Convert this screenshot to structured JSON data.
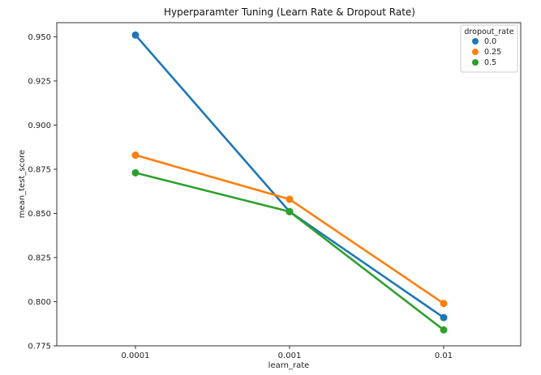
{
  "chart_data": {
    "type": "line",
    "title": "Hyperparamter Tuning (Learn Rate & Dropout Rate)",
    "xlabel": "learn_rate",
    "ylabel": "mean_test_score",
    "categories": [
      "0.0001",
      "0.001",
      "0.01"
    ],
    "ylim": [
      0.775,
      0.958
    ],
    "yticks": [
      0.775,
      0.8,
      0.825,
      0.85,
      0.875,
      0.9,
      0.925,
      0.95
    ],
    "ytick_labels": [
      "0.775",
      "0.800",
      "0.825",
      "0.850",
      "0.875",
      "0.900",
      "0.925",
      "0.950"
    ],
    "grid": false,
    "legend_title": "dropout_rate",
    "legend_position": "top-right",
    "series": [
      {
        "name": "0.0",
        "color": "#1f77b4",
        "values": [
          0.951,
          0.851,
          0.791
        ]
      },
      {
        "name": "0.25",
        "color": "#ff7f0e",
        "values": [
          0.883,
          0.858,
          0.799
        ]
      },
      {
        "name": "0.5",
        "color": "#2ca02c",
        "values": [
          0.873,
          0.851,
          0.784
        ]
      }
    ]
  }
}
